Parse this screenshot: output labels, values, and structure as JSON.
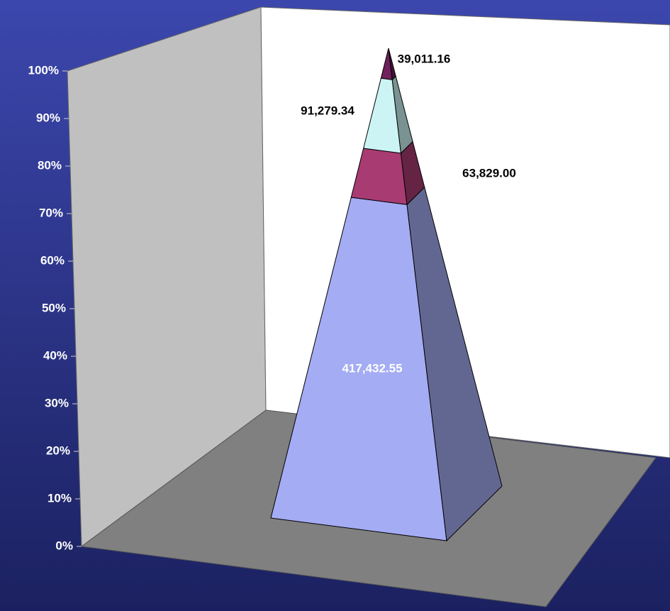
{
  "chart_data": {
    "type": "pyramid",
    "series": [
      {
        "color": "#a4acf4",
        "values": [
          417432.55
        ],
        "value_labels": [
          "417,432.55"
        ]
      },
      {
        "color": "#a83c72",
        "values": [
          63829.0
        ],
        "value_labels": [
          "63,829.00"
        ]
      },
      {
        "color": "#ccf4f4",
        "values": [
          91279.34
        ],
        "value_labels": [
          "91,279.34"
        ]
      },
      {
        "color": "#70205c",
        "values": [
          39011.16
        ],
        "value_labels": [
          "39,011.16"
        ]
      }
    ],
    "ylim": [
      0,
      100
    ],
    "yticks": [
      {
        "value": 0,
        "label": "0%"
      },
      {
        "value": 10,
        "label": "10%"
      },
      {
        "value": 20,
        "label": "20%"
      },
      {
        "value": 30,
        "label": "30%"
      },
      {
        "value": 40,
        "label": "40%"
      },
      {
        "value": 50,
        "label": "50%"
      },
      {
        "value": 60,
        "label": "60%"
      },
      {
        "value": 70,
        "label": "70%"
      },
      {
        "value": 80,
        "label": "80%"
      },
      {
        "value": 90,
        "label": "90%"
      },
      {
        "value": 100,
        "label": "100%"
      }
    ]
  }
}
